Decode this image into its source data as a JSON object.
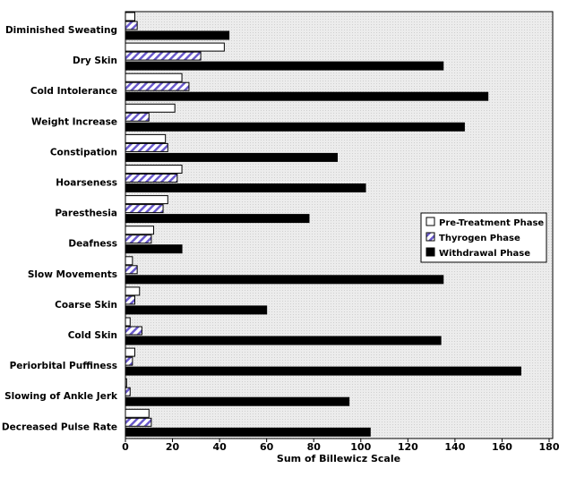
{
  "chart_data": {
    "type": "bar",
    "orientation": "horizontal",
    "title": "",
    "xlabel": "Sum of Billewicz Scale",
    "ylabel": "",
    "xlim": [
      0,
      180
    ],
    "xticks": [
      0,
      20,
      40,
      60,
      80,
      100,
      120,
      140,
      160,
      180
    ],
    "categories": [
      "Diminished Sweating",
      "Dry Skin",
      "Cold Intolerance",
      "Weight Increase",
      "Constipation",
      "Hoarseness",
      "Paresthesia",
      "Deafness",
      "Slow Movements",
      "Coarse Skin",
      "Cold Skin",
      "Periorbital Puffiness",
      "Slowing of Ankle Jerk",
      "Decreased Pulse Rate"
    ],
    "series": [
      {
        "name": "Pre-Treatment Phase",
        "color": "#ffffff",
        "values": [
          4,
          42,
          24,
          21,
          17,
          24,
          18,
          12,
          3,
          6,
          2,
          4,
          0.5,
          10
        ]
      },
      {
        "name": "Thyrogen Phase",
        "color": "#6a5acd",
        "values": [
          5,
          32,
          27,
          10,
          18,
          22,
          16,
          11,
          5,
          4,
          7,
          3,
          2,
          11
        ]
      },
      {
        "name": "Withdrawal Phase",
        "color": "#000000",
        "values": [
          44,
          135,
          154,
          144,
          90,
          102,
          78,
          24,
          135,
          60,
          134,
          168,
          95,
          104
        ]
      }
    ],
    "legend_position": "right-middle",
    "grid": false
  }
}
